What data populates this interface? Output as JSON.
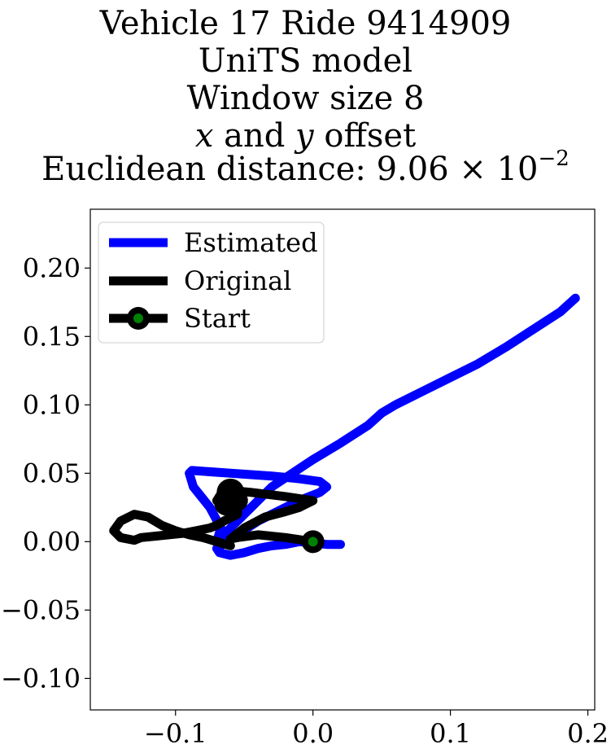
{
  "title_lines": [
    "Vehicle 17 Ride 9414909",
    "UniTS model",
    "Window size 8",
    {
      "var_x": "x",
      "and": " and ",
      "var_y": "y",
      "rest": " offset"
    },
    {
      "text": "Euclidean distance: 9.06 × 10",
      "sup": "−2"
    }
  ],
  "chart_data": {
    "type": "line",
    "title": "Vehicle 17 Ride 9414909\nUniTS model\nWindow size 8\nx and y offset\nEuclidean distance: 9.06×10^-2",
    "xlabel": "",
    "ylabel": "",
    "xlim": [
      -0.162,
      0.205
    ],
    "ylim": [
      -0.123,
      0.243
    ],
    "xticks": [
      -0.1,
      0.0,
      0.1,
      0.2
    ],
    "xtick_labels": [
      "−0.1",
      "0.0",
      "0.1",
      "0.2"
    ],
    "yticks": [
      -0.1,
      -0.05,
      0.0,
      0.05,
      0.1,
      0.15,
      0.2
    ],
    "ytick_labels": [
      "−0.10",
      "−0.05",
      "0.00",
      "0.05",
      "0.10",
      "0.15",
      "0.20"
    ],
    "grid": false,
    "legend_placement": "top-left",
    "series": [
      {
        "name": "Estimated",
        "color": "#0000ff",
        "x": [
          0.02,
          0.01,
          0.0,
          -0.01,
          -0.02,
          -0.03,
          -0.04,
          -0.05,
          -0.06,
          -0.068,
          -0.07,
          -0.06,
          -0.04,
          -0.01,
          0.005,
          0.01,
          0.005,
          -0.01,
          -0.03,
          -0.06,
          -0.088,
          -0.09,
          -0.087,
          -0.075,
          -0.067,
          -0.07,
          -0.06,
          -0.045,
          -0.03,
          -0.015,
          0.0,
          0.02,
          0.04,
          0.05,
          0.06,
          0.08,
          0.1,
          0.12,
          0.14,
          0.16,
          0.18,
          0.191
        ],
        "y": [
          -0.002,
          -0.002,
          -0.001,
          0.0,
          -0.002,
          -0.003,
          -0.005,
          -0.008,
          -0.01,
          -0.008,
          -0.005,
          0.002,
          0.015,
          0.03,
          0.036,
          0.04,
          0.044,
          0.046,
          0.048,
          0.05,
          0.052,
          0.05,
          0.04,
          0.025,
          0.01,
          0.0,
          0.01,
          0.025,
          0.04,
          0.05,
          0.06,
          0.072,
          0.085,
          0.094,
          0.1,
          0.11,
          0.12,
          0.13,
          0.142,
          0.155,
          0.168,
          0.178
        ]
      },
      {
        "name": "Original",
        "color": "#000000",
        "x": [
          0.0,
          -0.02,
          -0.04,
          -0.055,
          -0.06,
          -0.05,
          -0.035,
          -0.02,
          -0.01,
          0.0,
          -0.02,
          -0.045,
          -0.065,
          -0.07,
          -0.06,
          -0.055,
          -0.065,
          -0.07,
          -0.075,
          -0.085,
          -0.095,
          -0.105,
          -0.115,
          -0.125,
          -0.13,
          -0.14,
          -0.145,
          -0.14,
          -0.13,
          -0.12,
          -0.11,
          -0.1,
          -0.09,
          -0.08,
          -0.07,
          -0.06
        ],
        "y": [
          0.0,
          0.003,
          0.005,
          0.003,
          0.002,
          0.01,
          0.018,
          0.022,
          0.025,
          0.03,
          0.033,
          0.036,
          0.038,
          0.03,
          0.025,
          0.02,
          0.015,
          0.012,
          0.01,
          0.008,
          0.006,
          0.005,
          0.004,
          0.003,
          0.001,
          0.003,
          0.008,
          0.015,
          0.02,
          0.018,
          0.012,
          0.008,
          0.005,
          0.003,
          0.0,
          -0.003
        ]
      },
      {
        "name": "Start",
        "color": "#000000",
        "marker_face": "#008000",
        "x": [
          0.0
        ],
        "y": [
          0.0
        ]
      }
    ]
  }
}
